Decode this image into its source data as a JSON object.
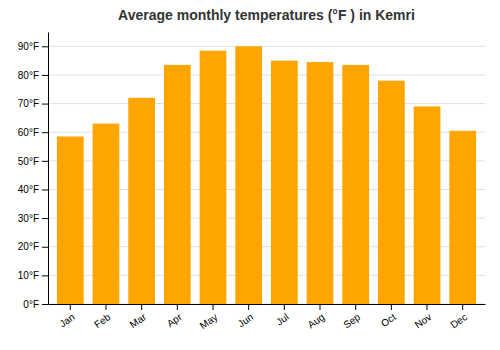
{
  "chart_data": {
    "type": "bar",
    "title": "Average monthly temperatures (°F ) in Kemri",
    "categories": [
      "Jan",
      "Feb",
      "Mar",
      "Apr",
      "May",
      "Jun",
      "Jul",
      "Aug",
      "Sep",
      "Oct",
      "Nov",
      "Dec"
    ],
    "values": [
      58.5,
      63.0,
      72.0,
      83.5,
      88.5,
      90.0,
      85.0,
      84.5,
      83.5,
      78.0,
      69.0,
      60.5
    ],
    "color": "#FFA500",
    "ylim": [
      0,
      95
    ],
    "yticks": [
      {
        "value": 0,
        "label": "0°F"
      },
      {
        "value": 10,
        "label": "10°F"
      },
      {
        "value": 20,
        "label": "20°F"
      },
      {
        "value": 30,
        "label": "30°F"
      },
      {
        "value": 40,
        "label": "40°F"
      },
      {
        "value": 50,
        "label": "50°F"
      },
      {
        "value": 60,
        "label": "60°F"
      },
      {
        "value": 70,
        "label": "70°F"
      },
      {
        "value": 80,
        "label": "80°F"
      },
      {
        "value": 90,
        "label": "90°F"
      }
    ],
    "grid": true
  }
}
